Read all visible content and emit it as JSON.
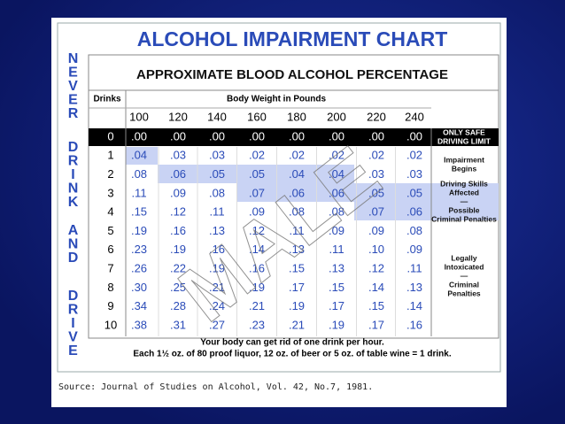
{
  "header": {
    "title": "ALCOHOL IMPAIRMENT CHART"
  },
  "banner": [
    "NEVER",
    "DRINK",
    "AND",
    "DRIVE"
  ],
  "table": {
    "subtitle": "APPROXIMATE BLOOD ALCOHOL PERCENTAGE",
    "drinks_label": "Drinks",
    "weight_label": "Body Weight in Pounds",
    "weights": [
      100,
      120,
      140,
      160,
      180,
      200,
      220,
      240
    ],
    "rows": [
      {
        "drinks": 0,
        "values": [
          ".00",
          ".00",
          ".00",
          ".00",
          ".00",
          ".00",
          ".00",
          ".00"
        ]
      },
      {
        "drinks": 1,
        "values": [
          ".04",
          ".03",
          ".03",
          ".02",
          ".02",
          ".02",
          ".02",
          ".02"
        ]
      },
      {
        "drinks": 2,
        "values": [
          ".08",
          ".06",
          ".05",
          ".05",
          ".04",
          ".04",
          ".03",
          ".03"
        ]
      },
      {
        "drinks": 3,
        "values": [
          ".11",
          ".09",
          ".08",
          ".07",
          ".06",
          ".06",
          ".05",
          ".05"
        ]
      },
      {
        "drinks": 4,
        "values": [
          ".15",
          ".12",
          ".11",
          ".09",
          ".08",
          ".08",
          ".07",
          ".06"
        ]
      },
      {
        "drinks": 5,
        "values": [
          ".19",
          ".16",
          ".13",
          ".12",
          ".11",
          ".09",
          ".09",
          ".08"
        ]
      },
      {
        "drinks": 6,
        "values": [
          ".23",
          ".19",
          ".16",
          ".14",
          ".13",
          ".11",
          ".10",
          ".09"
        ]
      },
      {
        "drinks": 7,
        "values": [
          ".26",
          ".22",
          ".19",
          ".16",
          ".15",
          ".13",
          ".12",
          ".11"
        ]
      },
      {
        "drinks": 8,
        "values": [
          ".30",
          ".25",
          ".21",
          ".19",
          ".17",
          ".15",
          ".14",
          ".13"
        ]
      },
      {
        "drinks": 9,
        "values": [
          ".34",
          ".28",
          ".24",
          ".21",
          ".19",
          ".17",
          ".15",
          ".14"
        ]
      },
      {
        "drinks": 10,
        "values": [
          ".38",
          ".31",
          ".27",
          ".23",
          ".21",
          ".19",
          ".17",
          ".16"
        ]
      }
    ],
    "zones": [
      {
        "lines": [
          "ONLY SAFE",
          "DRIVING LIMIT"
        ]
      },
      {
        "lines": [
          "Impairment",
          "Begins"
        ]
      },
      {
        "lines": [
          "Driving Skills",
          "Affected",
          "—",
          "Possible",
          "Criminal Penalties"
        ]
      },
      {
        "lines": [
          "Legally",
          "Intoxicated",
          "—",
          "Criminal",
          "Penalties"
        ]
      }
    ],
    "notes": [
      "Your body can get rid of one drink per hour.",
      "Each 1½ oz. of 80 proof liquor, 12 oz. of beer or 5 oz. of table wine = 1 drink."
    ],
    "watermark": "MALE"
  },
  "source": "Source:  Journal of Studies on Alcohol, Vol. 42, No.7, 1981."
}
